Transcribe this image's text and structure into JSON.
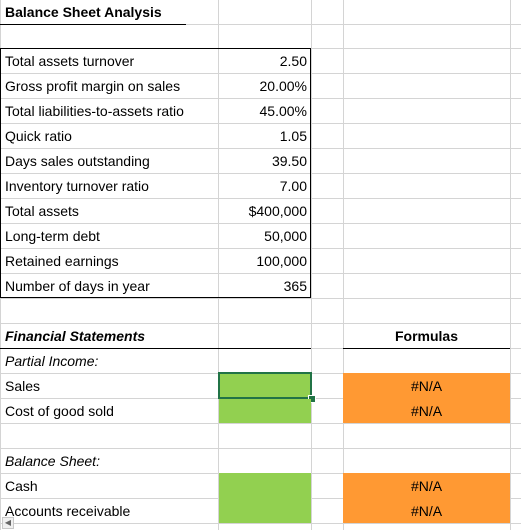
{
  "title": "Balance Sheet Analysis",
  "inputs": [
    {
      "label": "Total assets turnover",
      "value": "2.50"
    },
    {
      "label": "Gross profit margin on sales",
      "value": "20.00%"
    },
    {
      "label": "Total liabilities-to-assets ratio",
      "value": "45.00%"
    },
    {
      "label": "Quick ratio",
      "value": "1.05"
    },
    {
      "label": "Days sales outstanding",
      "value": "39.50"
    },
    {
      "label": "Inventory turnover ratio",
      "value": "7.00"
    },
    {
      "label": "Total assets",
      "value": "$400,000"
    },
    {
      "label": "Long-term debt",
      "value": "50,000"
    },
    {
      "label": "Retained earnings",
      "value": "100,000"
    },
    {
      "label": "Number of days in year",
      "value": "365"
    }
  ],
  "financial_statements": {
    "heading": "Financial Statements",
    "formulas_heading": "Formulas",
    "partial_income": "Partial Income:",
    "sales_label": "Sales",
    "sales_formula": "#N/A",
    "cogs_label": "Cost of good sold",
    "cogs_formula": "#N/A",
    "balance_sheet": "Balance Sheet:",
    "cash_label": "Cash",
    "cash_formula": "#N/A",
    "ar_label": "Accounts receivable",
    "ar_formula": "#N/A"
  },
  "colors": {
    "input_fill": "#92d050",
    "formula_fill": "#ff9933",
    "selection": "#217346"
  },
  "icons": {
    "scroll_left": "triangle-left-icon"
  }
}
